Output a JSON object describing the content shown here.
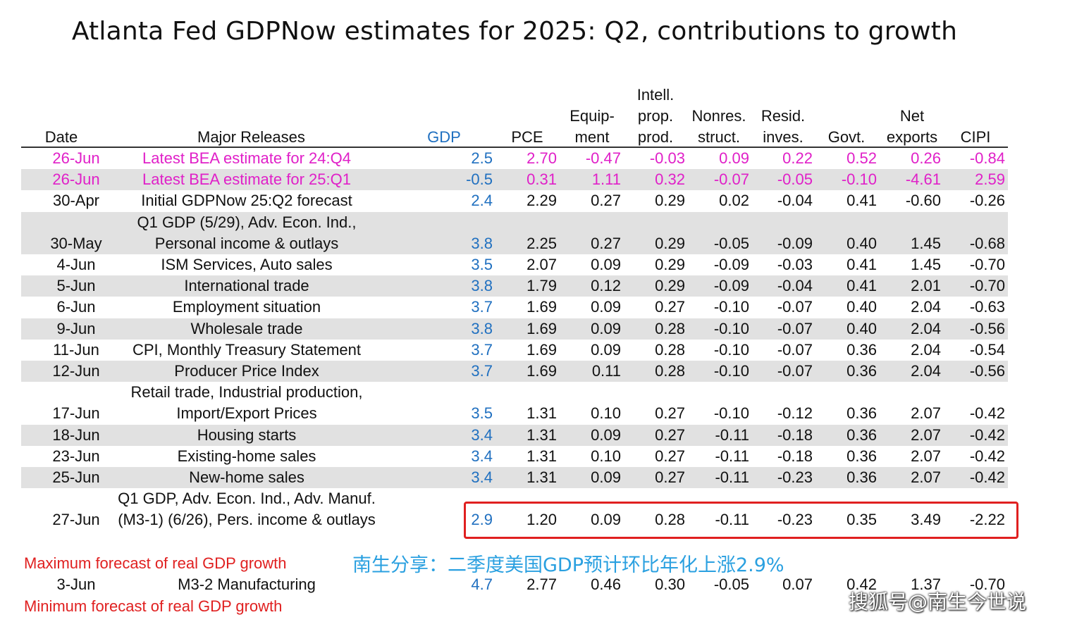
{
  "title": "Atlanta Fed GDPNow estimates for 2025: Q2, contributions to growth",
  "columns": [
    {
      "key": "date",
      "lines": [
        "Date"
      ]
    },
    {
      "key": "release",
      "lines": [
        "Major Releases"
      ]
    },
    {
      "key": "gdp",
      "lines": [
        "GDP"
      ]
    },
    {
      "key": "pce",
      "lines": [
        "PCE"
      ]
    },
    {
      "key": "equip",
      "lines": [
        "Equip-",
        "ment"
      ]
    },
    {
      "key": "ipp",
      "lines": [
        "Intell.",
        "prop.",
        "prod."
      ]
    },
    {
      "key": "nonres",
      "lines": [
        "Nonres.",
        "struct."
      ]
    },
    {
      "key": "resid",
      "lines": [
        "Resid.",
        "inves."
      ]
    },
    {
      "key": "govt",
      "lines": [
        "Govt."
      ]
    },
    {
      "key": "netexp",
      "lines": [
        "Net",
        "exports"
      ]
    },
    {
      "key": "cipi",
      "lines": [
        "CIPI"
      ]
    }
  ],
  "colors": {
    "bea_rows": "#e020c8",
    "gdp_column": "#2070c0",
    "highlight_box": "#e02020",
    "forecast_labels": "#e02020",
    "band": "#e1e1e1",
    "note": "#2aa0e0"
  },
  "chart_data": {
    "type": "table",
    "title": "Atlanta Fed GDPNow estimates for 2025: Q2, contributions to growth",
    "rows": [
      {
        "date": "26-Jun",
        "release": [
          "Latest BEA estimate for 24:Q4"
        ],
        "gdp": "2.5",
        "pce": "2.70",
        "equip": "-0.47",
        "ipp": "-0.03",
        "nonres": "0.09",
        "resid": "0.22",
        "govt": "0.52",
        "netexp": "0.26",
        "cipi": "-0.84",
        "style": "pink",
        "band": false
      },
      {
        "date": "26-Jun",
        "release": [
          "Latest BEA estimate for 25:Q1"
        ],
        "gdp": "-0.5",
        "pce": "0.31",
        "equip": "1.11",
        "ipp": "0.32",
        "nonres": "-0.07",
        "resid": "-0.05",
        "govt": "-0.10",
        "netexp": "-4.61",
        "cipi": "2.59",
        "style": "pink",
        "band": true
      },
      {
        "date": "30-Apr",
        "release": [
          "Initial GDPNow 25:Q2 forecast"
        ],
        "gdp": "2.4",
        "pce": "2.29",
        "equip": "0.27",
        "ipp": "0.29",
        "nonres": "0.02",
        "resid": "-0.04",
        "govt": "0.41",
        "netexp": "-0.60",
        "cipi": "-0.26",
        "style": "normal",
        "band": false
      },
      {
        "date": "30-May",
        "release": [
          "Q1 GDP (5/29), Adv. Econ. Ind.,",
          "Personal income & outlays"
        ],
        "gdp": "3.8",
        "pce": "2.25",
        "equip": "0.27",
        "ipp": "0.29",
        "nonres": "-0.05",
        "resid": "-0.09",
        "govt": "0.40",
        "netexp": "1.45",
        "cipi": "-0.68",
        "style": "normal",
        "band": true
      },
      {
        "date": "4-Jun",
        "release": [
          "ISM Services, Auto sales"
        ],
        "gdp": "3.5",
        "pce": "2.07",
        "equip": "0.09",
        "ipp": "0.29",
        "nonres": "-0.09",
        "resid": "-0.03",
        "govt": "0.41",
        "netexp": "1.45",
        "cipi": "-0.70",
        "style": "normal",
        "band": false
      },
      {
        "date": "5-Jun",
        "release": [
          "International trade"
        ],
        "gdp": "3.8",
        "pce": "1.79",
        "equip": "0.12",
        "ipp": "0.29",
        "nonres": "-0.09",
        "resid": "-0.04",
        "govt": "0.41",
        "netexp": "2.01",
        "cipi": "-0.70",
        "style": "normal",
        "band": true
      },
      {
        "date": "6-Jun",
        "release": [
          "Employment situation"
        ],
        "gdp": "3.7",
        "pce": "1.69",
        "equip": "0.09",
        "ipp": "0.27",
        "nonres": "-0.10",
        "resid": "-0.07",
        "govt": "0.40",
        "netexp": "2.04",
        "cipi": "-0.63",
        "style": "normal",
        "band": false
      },
      {
        "date": "9-Jun",
        "release": [
          "Wholesale trade"
        ],
        "gdp": "3.8",
        "pce": "1.69",
        "equip": "0.09",
        "ipp": "0.28",
        "nonres": "-0.10",
        "resid": "-0.07",
        "govt": "0.40",
        "netexp": "2.04",
        "cipi": "-0.56",
        "style": "normal",
        "band": true
      },
      {
        "date": "11-Jun",
        "release": [
          "CPI, Monthly Treasury Statement"
        ],
        "gdp": "3.7",
        "pce": "1.69",
        "equip": "0.09",
        "ipp": "0.28",
        "nonres": "-0.10",
        "resid": "-0.07",
        "govt": "0.36",
        "netexp": "2.04",
        "cipi": "-0.54",
        "style": "normal",
        "band": false
      },
      {
        "date": "12-Jun",
        "release": [
          "Producer Price Index"
        ],
        "gdp": "3.7",
        "pce": "1.69",
        "equip": "0.11",
        "ipp": "0.28",
        "nonres": "-0.10",
        "resid": "-0.07",
        "govt": "0.36",
        "netexp": "2.04",
        "cipi": "-0.56",
        "style": "normal",
        "band": true
      },
      {
        "date": "17-Jun",
        "release": [
          "Retail trade, Industrial production,",
          "Import/Export Prices"
        ],
        "gdp": "3.5",
        "pce": "1.31",
        "equip": "0.10",
        "ipp": "0.27",
        "nonres": "-0.10",
        "resid": "-0.12",
        "govt": "0.36",
        "netexp": "2.07",
        "cipi": "-0.42",
        "style": "normal",
        "band": false
      },
      {
        "date": "18-Jun",
        "release": [
          "Housing starts"
        ],
        "gdp": "3.4",
        "pce": "1.31",
        "equip": "0.09",
        "ipp": "0.27",
        "nonres": "-0.11",
        "resid": "-0.18",
        "govt": "0.36",
        "netexp": "2.07",
        "cipi": "-0.42",
        "style": "normal",
        "band": true
      },
      {
        "date": "23-Jun",
        "release": [
          "Existing-home sales"
        ],
        "gdp": "3.4",
        "pce": "1.31",
        "equip": "0.10",
        "ipp": "0.27",
        "nonres": "-0.11",
        "resid": "-0.18",
        "govt": "0.36",
        "netexp": "2.07",
        "cipi": "-0.42",
        "style": "normal",
        "band": false
      },
      {
        "date": "25-Jun",
        "release": [
          "New-home sales"
        ],
        "gdp": "3.4",
        "pce": "1.31",
        "equip": "0.09",
        "ipp": "0.27",
        "nonres": "-0.11",
        "resid": "-0.23",
        "govt": "0.36",
        "netexp": "2.07",
        "cipi": "-0.42",
        "style": "normal",
        "band": true
      },
      {
        "date": "27-Jun",
        "release": [
          "Q1 GDP, Adv. Econ. Ind., Adv. Manuf.",
          "(M3-1) (6/26), Pers. income & outlays"
        ],
        "gdp": "2.9",
        "pce": "1.20",
        "equip": "0.09",
        "ipp": "0.28",
        "nonres": "-0.11",
        "resid": "-0.23",
        "govt": "0.35",
        "netexp": "3.49",
        "cipi": "-2.22",
        "style": "normal",
        "band": false,
        "highlighted": true
      }
    ],
    "max_forecast": {
      "label": "Maximum forecast of real GDP growth",
      "date": "3-Jun",
      "release": "M3-2 Manufacturing",
      "gdp": "4.7",
      "pce": "2.77",
      "equip": "0.46",
      "ipp": "0.30",
      "nonres": "-0.05",
      "resid": "0.07",
      "govt": "0.42",
      "netexp": "1.37",
      "cipi": "-0.70"
    },
    "min_forecast": {
      "label": "Minimum forecast of real GDP growth"
    }
  },
  "note": "南生分享：二季度美国GDP预计环比年化上涨2.9%",
  "watermark": "搜狐号@南生今世说"
}
